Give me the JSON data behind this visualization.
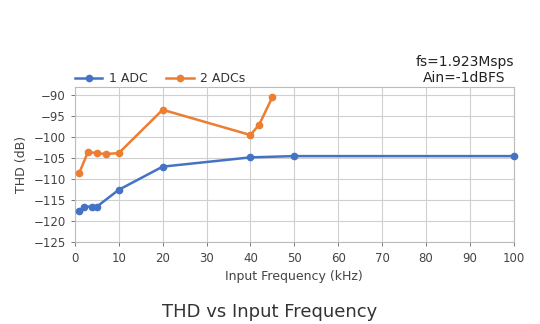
{
  "title": "THD vs Input Frequency",
  "xlabel": "Input Frequency (kHz)",
  "ylabel": "THD (dB)",
  "annotation": "fs=1.923Msps\nAin=-1dBFS",
  "xlim": [
    0,
    100
  ],
  "ylim": [
    -125,
    -88
  ],
  "yticks": [
    -125,
    -120,
    -115,
    -110,
    -105,
    -100,
    -95,
    -90
  ],
  "xticks": [
    0,
    10,
    20,
    30,
    40,
    50,
    60,
    70,
    80,
    90,
    100
  ],
  "series_1adc": {
    "label": "1 ADC",
    "color": "#4472C4",
    "x": [
      1,
      2,
      4,
      5,
      10,
      20,
      40,
      50,
      100
    ],
    "y": [
      -117.5,
      -116.5,
      -116.5,
      -116.5,
      -112.5,
      -107,
      -104.8,
      -104.5,
      -104.5
    ]
  },
  "series_2adcs": {
    "label": "2 ADCs",
    "color": "#ED7D31",
    "x": [
      1,
      3,
      5,
      7,
      10,
      20,
      40,
      42,
      45
    ],
    "y": [
      -108.5,
      -103.5,
      -103.8,
      -104.0,
      -103.8,
      -93.5,
      -99.5,
      -97.0,
      -90.5
    ]
  },
  "background_color": "#ffffff",
  "plot_bg_color": "#ffffff",
  "grid_color": "#d0d0d0",
  "title_fontsize": 13,
  "label_fontsize": 9,
  "tick_fontsize": 8.5,
  "legend_fontsize": 9,
  "annotation_fontsize": 10
}
